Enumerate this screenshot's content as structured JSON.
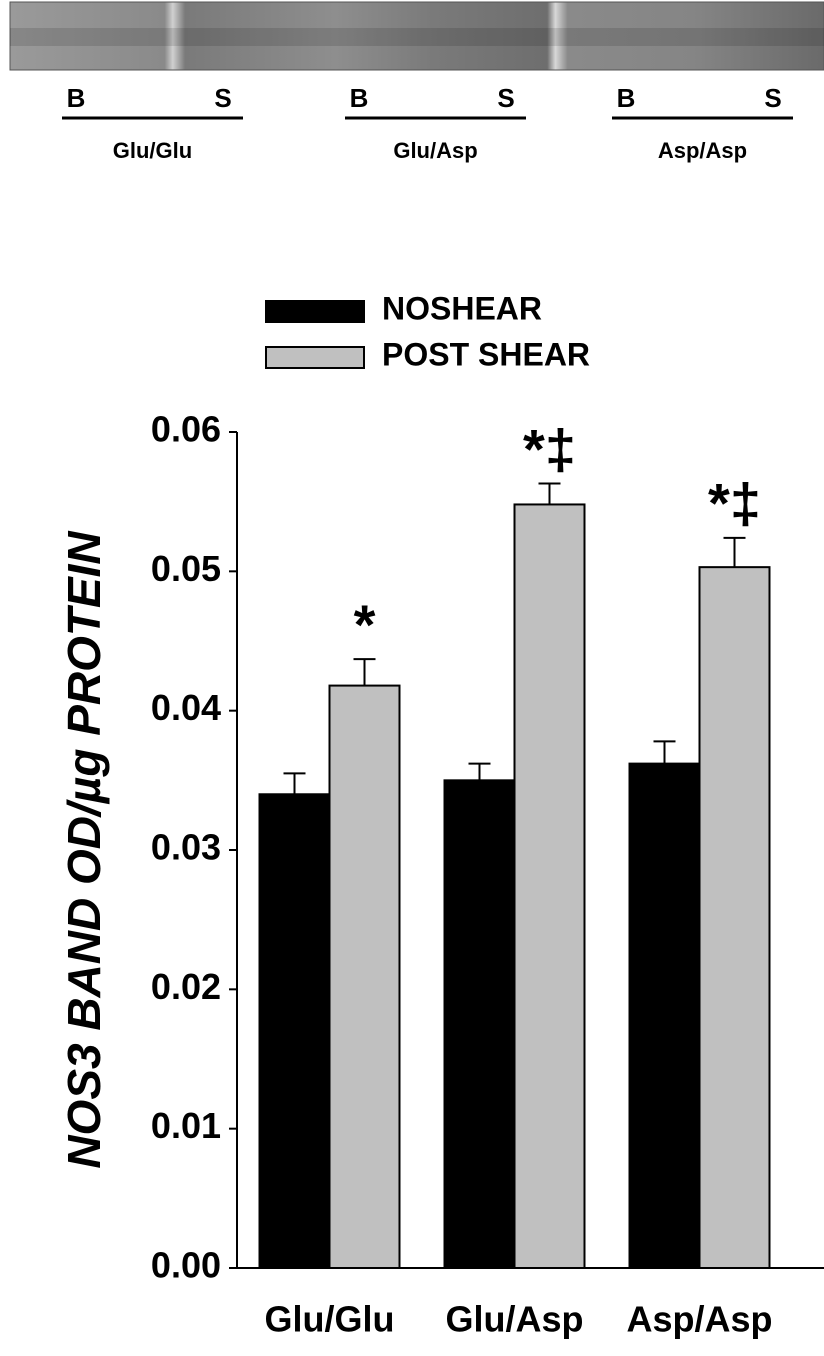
{
  "blot": {
    "lanes": [
      "B",
      "S",
      "B",
      "S",
      "B",
      "S"
    ],
    "groups": [
      "Glu/Glu",
      "Glu/Asp",
      "Asp/Asp"
    ]
  },
  "chart_data": {
    "type": "bar",
    "y_label": "NOS3 BAND OD/µg PROTEIN",
    "categories": [
      "Glu/Glu",
      "Glu/Asp",
      "Asp/Asp"
    ],
    "series": [
      {
        "name": "NOSHEAR",
        "color": "#000000",
        "values": [
          0.034,
          0.035,
          0.0362
        ],
        "errors": [
          0.0015,
          0.0012,
          0.0016
        ]
      },
      {
        "name": "POST SHEAR",
        "color": "#c0c0c0",
        "values": [
          0.0418,
          0.0548,
          0.0503
        ],
        "errors": [
          0.0019,
          0.0015,
          0.0021
        ],
        "annotations": [
          "*",
          "*‡",
          "*‡"
        ]
      }
    ],
    "ylim": [
      0,
      0.06
    ],
    "yticks": [
      {
        "value": 0,
        "label": "0.00"
      },
      0.01,
      0.02,
      0.03,
      0.04,
      0.05,
      0.06
    ],
    "grid": false
  }
}
